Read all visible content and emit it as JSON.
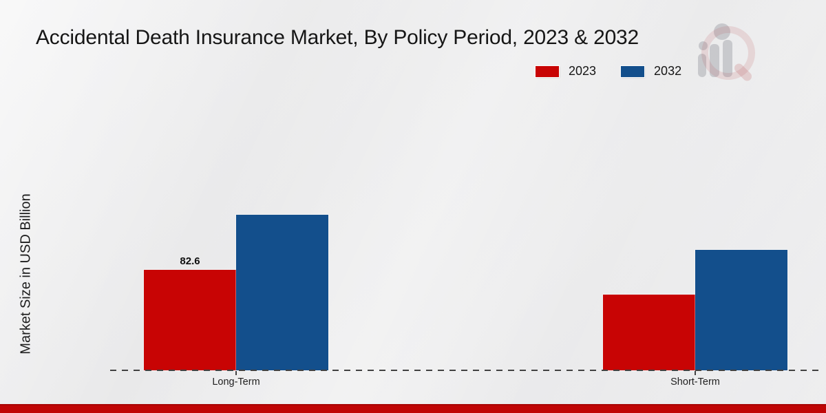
{
  "chart_data": {
    "type": "bar",
    "title": "Accidental Death Insurance Market, By Policy Period, 2023 & 2032",
    "categories": [
      "Long-Term",
      "Short-Term"
    ],
    "series": [
      {
        "name": "2023",
        "color": "#c80404",
        "values": [
          82.6,
          62.2
        ],
        "labels": [
          "82.6",
          null
        ]
      },
      {
        "name": "2032",
        "color": "#134f8c",
        "values": [
          127.9,
          99.0
        ],
        "labels": [
          null,
          null
        ]
      }
    ],
    "xlabel": "",
    "ylabel": "Market Size in USD Billion",
    "ylim": [
      0,
      140
    ],
    "grid": false,
    "legend_position": "top-right",
    "baseline_style": "dashed",
    "labeled_value": "82.6"
  },
  "branding": {
    "watermark_icon": "magnifier-bar-chart-logo",
    "footer_accent_color": "#c00505"
  }
}
